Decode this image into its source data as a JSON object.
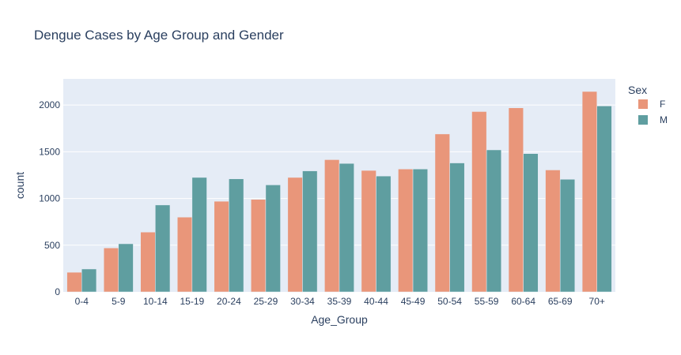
{
  "chart_data": {
    "type": "bar",
    "title": "Dengue Cases by Age Group and Gender",
    "xlabel": "Age_Group",
    "ylabel": "count",
    "categories": [
      "0-4",
      "5-9",
      "10-14",
      "15-19",
      "20-24",
      "25-29",
      "30-34",
      "35-39",
      "40-44",
      "45-49",
      "50-54",
      "55-59",
      "60-64",
      "65-69",
      "70+"
    ],
    "series": [
      {
        "name": "F",
        "color": "#e9967a",
        "values": [
          210,
          470,
          640,
          800,
          970,
          990,
          1225,
          1415,
          1300,
          1315,
          1690,
          1930,
          1970,
          1305,
          2145
        ]
      },
      {
        "name": "M",
        "color": "#5f9ea0",
        "values": [
          245,
          515,
          930,
          1225,
          1210,
          1145,
          1295,
          1375,
          1240,
          1315,
          1380,
          1520,
          1480,
          1205,
          1990
        ]
      }
    ],
    "ylim": [
      0,
      2280
    ],
    "yticks": [
      0,
      500,
      1000,
      1500,
      2000
    ],
    "legend_title": "Sex",
    "legend_position": "top-right",
    "grid": true,
    "plot_bg": "#e5ecf6",
    "gridline_color": "#ffffff",
    "text_color": "#2a3f5f"
  }
}
